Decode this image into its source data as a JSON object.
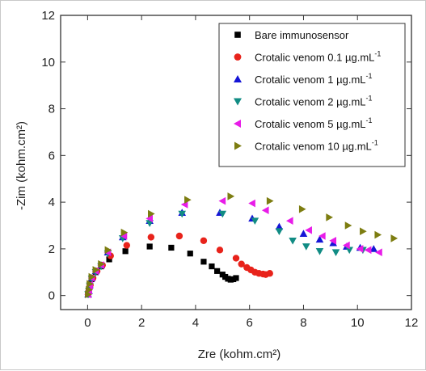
{
  "chart_data": {
    "type": "scatter",
    "xlabel": "Zre (kohm.cm²)",
    "ylabel": "-Zim (kohm.cm²)",
    "xlim": [
      -1,
      12
    ],
    "ylim": [
      -0.6,
      12
    ],
    "xticks": [
      "0",
      "2",
      "4",
      "6",
      "8",
      "10",
      "12"
    ],
    "yticks": [
      "0",
      "2",
      "4",
      "6",
      "8",
      "10",
      "12"
    ],
    "grid": false,
    "legend_position": "top-right",
    "series": [
      {
        "name": "Bare immunosensor",
        "legend_main": "Bare immunosensor",
        "legend_sup": "",
        "marker": "square",
        "color": "#000000",
        "points": [
          [
            0.02,
            0.05
          ],
          [
            0.05,
            0.2
          ],
          [
            0.08,
            0.4
          ],
          [
            0.15,
            0.7
          ],
          [
            0.3,
            1.0
          ],
          [
            0.5,
            1.25
          ],
          [
            0.8,
            1.55
          ],
          [
            1.4,
            1.9
          ],
          [
            2.3,
            2.1
          ],
          [
            3.1,
            2.05
          ],
          [
            3.8,
            1.8
          ],
          [
            4.3,
            1.45
          ],
          [
            4.6,
            1.25
          ],
          [
            4.8,
            1.05
          ],
          [
            5.0,
            0.9
          ],
          [
            5.1,
            0.8
          ],
          [
            5.2,
            0.72
          ],
          [
            5.3,
            0.68
          ],
          [
            5.4,
            0.7
          ],
          [
            5.5,
            0.75
          ]
        ]
      },
      {
        "name": "Crotalic venom 0.1 µg.mL-1",
        "legend_main": "Crotalic venom 0.1 µg.mL",
        "legend_sup": "-1",
        "marker": "circle",
        "color": "#e8231b",
        "points": [
          [
            0.02,
            0.05
          ],
          [
            0.05,
            0.25
          ],
          [
            0.1,
            0.45
          ],
          [
            0.2,
            0.75
          ],
          [
            0.35,
            1.05
          ],
          [
            0.55,
            1.3
          ],
          [
            0.85,
            1.7
          ],
          [
            1.45,
            2.15
          ],
          [
            2.35,
            2.5
          ],
          [
            3.4,
            2.55
          ],
          [
            4.3,
            2.35
          ],
          [
            4.9,
            1.95
          ],
          [
            5.5,
            1.6
          ],
          [
            5.7,
            1.35
          ],
          [
            5.9,
            1.2
          ],
          [
            6.05,
            1.1
          ],
          [
            6.2,
            1.0
          ],
          [
            6.35,
            0.95
          ],
          [
            6.5,
            0.92
          ],
          [
            6.6,
            0.9
          ],
          [
            6.75,
            0.95
          ]
        ]
      },
      {
        "name": "Crotalic venom 1 µg.mL-1",
        "legend_main": "Crotalic venom 1 µg.mL",
        "legend_sup": "-1",
        "marker": "triangle-up",
        "color": "#1515d6",
        "points": [
          [
            0.02,
            0.05
          ],
          [
            0.05,
            0.2
          ],
          [
            0.08,
            0.45
          ],
          [
            0.15,
            0.75
          ],
          [
            0.3,
            1.05
          ],
          [
            0.5,
            1.3
          ],
          [
            0.75,
            1.85
          ],
          [
            1.3,
            2.5
          ],
          [
            2.3,
            3.2
          ],
          [
            3.5,
            3.55
          ],
          [
            4.9,
            3.55
          ],
          [
            6.1,
            3.3
          ],
          [
            7.1,
            2.95
          ],
          [
            8.0,
            2.65
          ],
          [
            8.6,
            2.4
          ],
          [
            9.1,
            2.25
          ],
          [
            9.6,
            2.1
          ],
          [
            10.1,
            2.05
          ],
          [
            10.6,
            2.0
          ]
        ]
      },
      {
        "name": "Crotalic venom 2 µg.mL-1",
        "legend_main": "Crotalic venom 2 µg.mL",
        "legend_sup": "-1",
        "marker": "triangle-down",
        "color": "#118c84",
        "points": [
          [
            0.02,
            0.05
          ],
          [
            0.05,
            0.2
          ],
          [
            0.08,
            0.42
          ],
          [
            0.15,
            0.72
          ],
          [
            0.3,
            1.0
          ],
          [
            0.5,
            1.25
          ],
          [
            0.75,
            1.8
          ],
          [
            1.3,
            2.45
          ],
          [
            2.3,
            3.1
          ],
          [
            3.5,
            3.5
          ],
          [
            5.0,
            3.5
          ],
          [
            6.2,
            3.2
          ],
          [
            7.1,
            2.75
          ],
          [
            7.6,
            2.35
          ],
          [
            8.1,
            2.1
          ],
          [
            8.6,
            1.9
          ],
          [
            9.2,
            1.85
          ],
          [
            9.7,
            1.95
          ],
          [
            10.2,
            1.95
          ]
        ]
      },
      {
        "name": "Crotalic venom 5 µg.mL-1",
        "legend_main": "Crotalic venom 5 µg.mL",
        "legend_sup": "-1",
        "marker": "triangle-left",
        "color": "#e81ce8",
        "points": [
          [
            0.02,
            0.05
          ],
          [
            0.05,
            0.22
          ],
          [
            0.08,
            0.45
          ],
          [
            0.15,
            0.75
          ],
          [
            0.3,
            1.05
          ],
          [
            0.5,
            1.3
          ],
          [
            0.75,
            1.85
          ],
          [
            1.35,
            2.55
          ],
          [
            2.3,
            3.3
          ],
          [
            3.6,
            3.9
          ],
          [
            5.0,
            4.05
          ],
          [
            6.1,
            3.95
          ],
          [
            6.6,
            3.65
          ],
          [
            7.5,
            3.2
          ],
          [
            8.2,
            2.8
          ],
          [
            8.7,
            2.55
          ],
          [
            9.1,
            2.35
          ],
          [
            9.6,
            2.15
          ],
          [
            10.1,
            2.0
          ],
          [
            10.4,
            1.95
          ],
          [
            10.8,
            1.85
          ]
        ]
      },
      {
        "name": "Crotalic venom 10 µg.mL-1",
        "legend_main": "Crotalic venom 10 µg.mL",
        "legend_sup": "-1",
        "marker": "triangle-right",
        "color": "#7d7d11",
        "points": [
          [
            0.02,
            0.05
          ],
          [
            0.05,
            0.25
          ],
          [
            0.08,
            0.5
          ],
          [
            0.15,
            0.8
          ],
          [
            0.3,
            1.1
          ],
          [
            0.5,
            1.35
          ],
          [
            0.75,
            1.95
          ],
          [
            1.35,
            2.7
          ],
          [
            2.35,
            3.5
          ],
          [
            3.7,
            4.1
          ],
          [
            5.3,
            4.25
          ],
          [
            6.75,
            4.05
          ],
          [
            7.95,
            3.7
          ],
          [
            8.95,
            3.35
          ],
          [
            9.65,
            3.0
          ],
          [
            10.2,
            2.75
          ],
          [
            10.75,
            2.6
          ],
          [
            11.35,
            2.45
          ]
        ]
      }
    ]
  }
}
